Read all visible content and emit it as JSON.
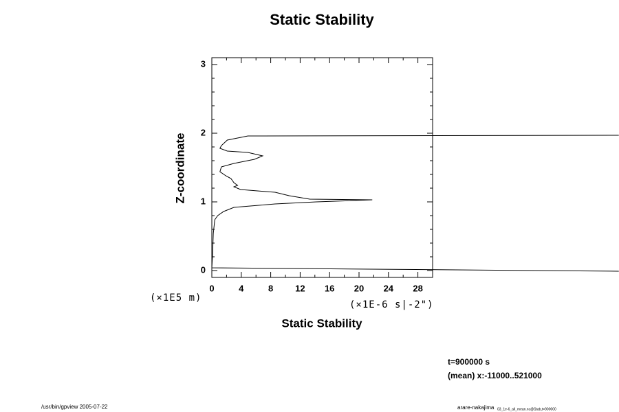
{
  "chart_data": {
    "type": "line",
    "title": "Static Stability",
    "x_label": "Static Stability",
    "y_label": "Z-coordinate",
    "y_unit": "(×1E5 m)",
    "x_unit": "(×1E-6 s|-2\")",
    "annotations": [
      "t=900000 s",
      "(mean) x:-11000..521000"
    ],
    "footer_left": "/usr/bin/gpview 2005-07-22",
    "footer_right": "arare-nakajima",
    "footer_right_suffix": "03_1e-6_all_mean.nc@Stab,t=900000",
    "xlim": [
      0,
      30
    ],
    "ylim": [
      -0.1,
      3.1
    ],
    "xticks": [
      0,
      4,
      8,
      12,
      16,
      20,
      24,
      28
    ],
    "yticks": [
      0,
      1,
      2,
      3
    ],
    "xminorticks": [
      2,
      6,
      10,
      14,
      18,
      22,
      26,
      30
    ],
    "yminorticks": [
      0.2,
      0.4,
      0.6,
      0.8,
      1.2,
      1.4,
      1.6,
      1.8,
      2.2,
      2.4,
      2.6,
      2.8
    ],
    "x": [
      55.3,
      4.9,
      2.1,
      1.3,
      1.1,
      2.1,
      4.9,
      6.9,
      5.8,
      3.0,
      1.3,
      1.1,
      1.9,
      2.6,
      3.0,
      3.5,
      3.0,
      3.9,
      8.6,
      10.5,
      13.3,
      21.8,
      14.2,
      8.6,
      3.0,
      1.6,
      0.8,
      0.4,
      0.2,
      0.1,
      0.0,
      55.3
    ],
    "series": [
      {
        "name": "Static Stability",
        "color": "#000000",
        "values": [
          1.97,
          1.96,
          1.9,
          1.82,
          1.78,
          1.74,
          1.72,
          1.67,
          1.62,
          1.56,
          1.51,
          1.44,
          1.38,
          1.34,
          1.28,
          1.24,
          1.22,
          1.18,
          1.14,
          1.09,
          1.04,
          1.03,
          1.0,
          0.97,
          0.92,
          0.86,
          0.8,
          0.74,
          0.54,
          0.24,
          0.04,
          -0.01
        ]
      }
    ]
  }
}
